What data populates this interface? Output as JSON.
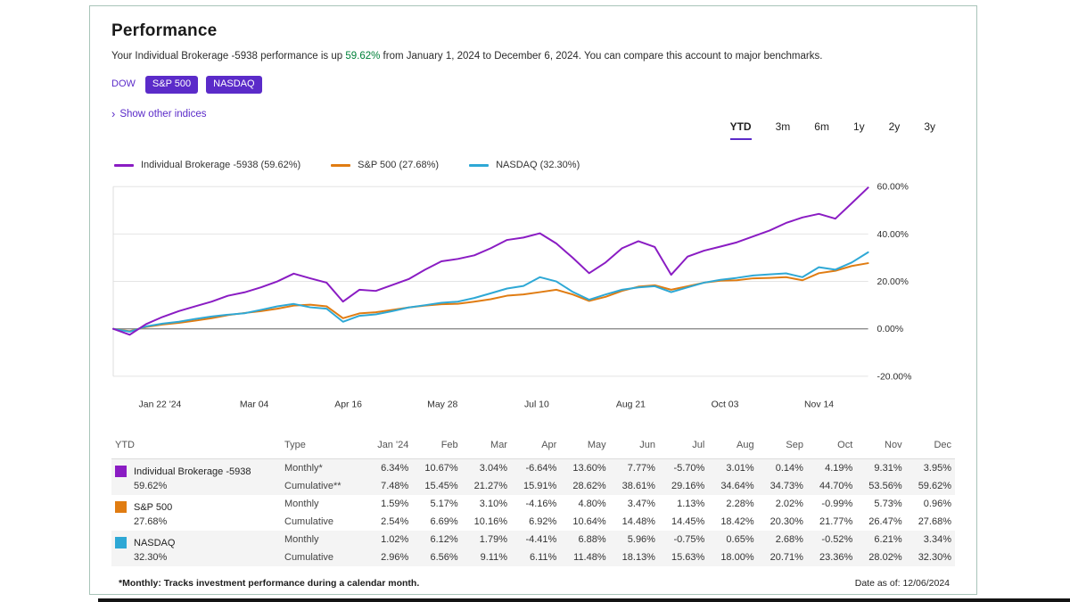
{
  "header": {
    "title": "Performance",
    "subtitle_prefix": "Your Individual Brokerage -5938 performance is up ",
    "subtitle_highlight": "59.62%",
    "subtitle_suffix": " from January 1, 2024 to December 6, 2024. You can compare this account to major benchmarks."
  },
  "benchmark_chips": [
    {
      "label": "DOW",
      "selected": false
    },
    {
      "label": "S&P 500",
      "selected": true
    },
    {
      "label": "NASDAQ",
      "selected": true
    }
  ],
  "show_other_indices": {
    "chevron": "›",
    "label": "Show other indices"
  },
  "range_tabs": {
    "options": [
      "YTD",
      "3m",
      "6m",
      "1y",
      "2y",
      "3y"
    ],
    "selected": "YTD"
  },
  "legend": [
    {
      "label": "Individual Brokerage -5938 (59.62%)",
      "color": "#8a1cc3"
    },
    {
      "label": "S&P 500 (27.68%)",
      "color": "#e07c12"
    },
    {
      "label": "NASDAQ (32.30%)",
      "color": "#2ea8d5"
    }
  ],
  "chart_data": {
    "type": "line",
    "title": "Performance YTD comparison",
    "x_tick_labels": [
      "Jan 22 '24",
      "Mar 04",
      "Apr 16",
      "May 28",
      "Jul 10",
      "Aug 21",
      "Oct 03",
      "Nov 14"
    ],
    "y_tick_labels": [
      "60.00%",
      "40.00%",
      "20.00%",
      "0.00%",
      "-20.00%"
    ],
    "y_gridline_values": [
      60,
      40,
      20,
      0,
      -20
    ],
    "ylim": [
      -24,
      62
    ],
    "legend_position": "top-left",
    "grid": true,
    "series": [
      {
        "name": "Individual Brokerage -5938",
        "color": "#8a1cc3",
        "monthly": [
          6.34,
          10.67,
          3.04,
          -6.64,
          13.6,
          7.77,
          -5.7,
          3.01,
          0.14,
          4.19,
          9.31,
          3.95
        ],
        "cumulative": [
          7.48,
          15.45,
          21.27,
          15.91,
          28.62,
          38.61,
          29.16,
          34.64,
          34.73,
          44.7,
          53.56,
          59.62
        ],
        "sampled_values": [
          0,
          -2.5,
          2,
          5,
          7.5,
          9.5,
          11.5,
          14,
          15.4,
          17.5,
          20,
          23.3,
          21.3,
          19.5,
          11.5,
          16.5,
          16,
          18.5,
          21,
          25,
          28.5,
          29.5,
          31,
          34,
          37.5,
          38.5,
          40.3,
          36,
          30,
          23.5,
          28,
          34,
          37,
          34.5,
          22.8,
          30.5,
          33,
          34.7,
          36.5,
          39,
          41.5,
          44.7,
          47,
          48.5,
          46.5,
          53,
          59.6
        ]
      },
      {
        "name": "S&P 500",
        "color": "#e07c12",
        "monthly": [
          1.59,
          5.17,
          3.1,
          -4.16,
          4.8,
          3.47,
          1.13,
          2.28,
          2.02,
          -0.99,
          5.73,
          0.96
        ],
        "cumulative": [
          2.54,
          6.69,
          10.16,
          6.92,
          10.64,
          14.48,
          14.45,
          18.42,
          20.3,
          21.77,
          26.47,
          27.68
        ],
        "sampled_values": [
          0,
          -1,
          0.8,
          1.8,
          2.5,
          3.5,
          4.5,
          5.8,
          6.7,
          7.5,
          8.5,
          9.8,
          10.2,
          9.5,
          4.5,
          6.5,
          7,
          8,
          9,
          9.8,
          10.4,
          10.6,
          11.5,
          12.5,
          14,
          14.5,
          15.5,
          16.5,
          14.5,
          11.8,
          13.5,
          16,
          17.8,
          18.4,
          16.5,
          18,
          19.5,
          20.3,
          20.5,
          21.3,
          21.5,
          21.8,
          20.5,
          23.5,
          24.5,
          26.5,
          27.7
        ]
      },
      {
        "name": "NASDAQ",
        "color": "#2ea8d5",
        "monthly": [
          1.02,
          6.12,
          1.79,
          -4.41,
          6.88,
          5.96,
          -0.75,
          0.65,
          2.68,
          -0.52,
          6.21,
          3.34
        ],
        "cumulative": [
          2.96,
          6.56,
          9.11,
          6.11,
          11.48,
          18.13,
          15.63,
          18.0,
          20.71,
          23.36,
          28.02,
          32.3
        ],
        "sampled_values": [
          0,
          -1.2,
          1,
          2.2,
          3,
          4.2,
          5.2,
          6,
          6.6,
          8,
          9.5,
          10.5,
          9.1,
          8.5,
          3,
          5.5,
          6.1,
          7.5,
          9,
          10,
          11,
          11.5,
          13,
          15,
          17,
          18.1,
          21.8,
          20,
          15.6,
          12.3,
          14.5,
          16.5,
          17.5,
          18,
          15.5,
          17.5,
          19.5,
          20.7,
          21.5,
          22.5,
          23,
          23.4,
          21.8,
          26,
          25,
          28,
          32.3
        ]
      }
    ]
  },
  "table": {
    "period_label": "YTD",
    "type_header": "Type",
    "month_headers": [
      "Jan '24",
      "Feb",
      "Mar",
      "Apr",
      "May",
      "Jun",
      "Jul",
      "Aug",
      "Sep",
      "Oct",
      "Nov",
      "Dec"
    ],
    "groups": [
      {
        "name": "Individual Brokerage -5938",
        "ytd": "59.62%",
        "color": "#8a1cc3",
        "shaded": true,
        "rows": [
          {
            "type": "Monthly*",
            "values": [
              "6.34%",
              "10.67%",
              "3.04%",
              "-6.64%",
              "13.60%",
              "7.77%",
              "-5.70%",
              "3.01%",
              "0.14%",
              "4.19%",
              "9.31%",
              "3.95%"
            ]
          },
          {
            "type": "Cumulative**",
            "values": [
              "7.48%",
              "15.45%",
              "21.27%",
              "15.91%",
              "28.62%",
              "38.61%",
              "29.16%",
              "34.64%",
              "34.73%",
              "44.70%",
              "53.56%",
              "59.62%"
            ]
          }
        ]
      },
      {
        "name": "S&P 500",
        "ytd": "27.68%",
        "color": "#e07c12",
        "shaded": false,
        "rows": [
          {
            "type": "Monthly",
            "values": [
              "1.59%",
              "5.17%",
              "3.10%",
              "-4.16%",
              "4.80%",
              "3.47%",
              "1.13%",
              "2.28%",
              "2.02%",
              "-0.99%",
              "5.73%",
              "0.96%"
            ]
          },
          {
            "type": "Cumulative",
            "values": [
              "2.54%",
              "6.69%",
              "10.16%",
              "6.92%",
              "10.64%",
              "14.48%",
              "14.45%",
              "18.42%",
              "20.30%",
              "21.77%",
              "26.47%",
              "27.68%"
            ]
          }
        ]
      },
      {
        "name": "NASDAQ",
        "ytd": "32.30%",
        "color": "#2ea8d5",
        "shaded": true,
        "rows": [
          {
            "type": "Monthly",
            "values": [
              "1.02%",
              "6.12%",
              "1.79%",
              "-4.41%",
              "6.88%",
              "5.96%",
              "-0.75%",
              "0.65%",
              "2.68%",
              "-0.52%",
              "6.21%",
              "3.34%"
            ]
          },
          {
            "type": "Cumulative",
            "values": [
              "2.96%",
              "6.56%",
              "9.11%",
              "6.11%",
              "11.48%",
              "18.13%",
              "15.63%",
              "18.00%",
              "20.71%",
              "23.36%",
              "28.02%",
              "32.30%"
            ]
          }
        ]
      }
    ]
  },
  "footer": {
    "note": "*Monthly: Tracks investment performance during a calendar month.",
    "date_as_of": "Date as of: 12/06/2024"
  },
  "colors": {
    "accent_purple": "#5b2bc9",
    "positive_green": "#00813a",
    "brokerage_line": "#8a1cc3",
    "sp500_line": "#e07c12",
    "nasdaq_line": "#2ea8d5",
    "card_border": "#a9c4b9"
  }
}
